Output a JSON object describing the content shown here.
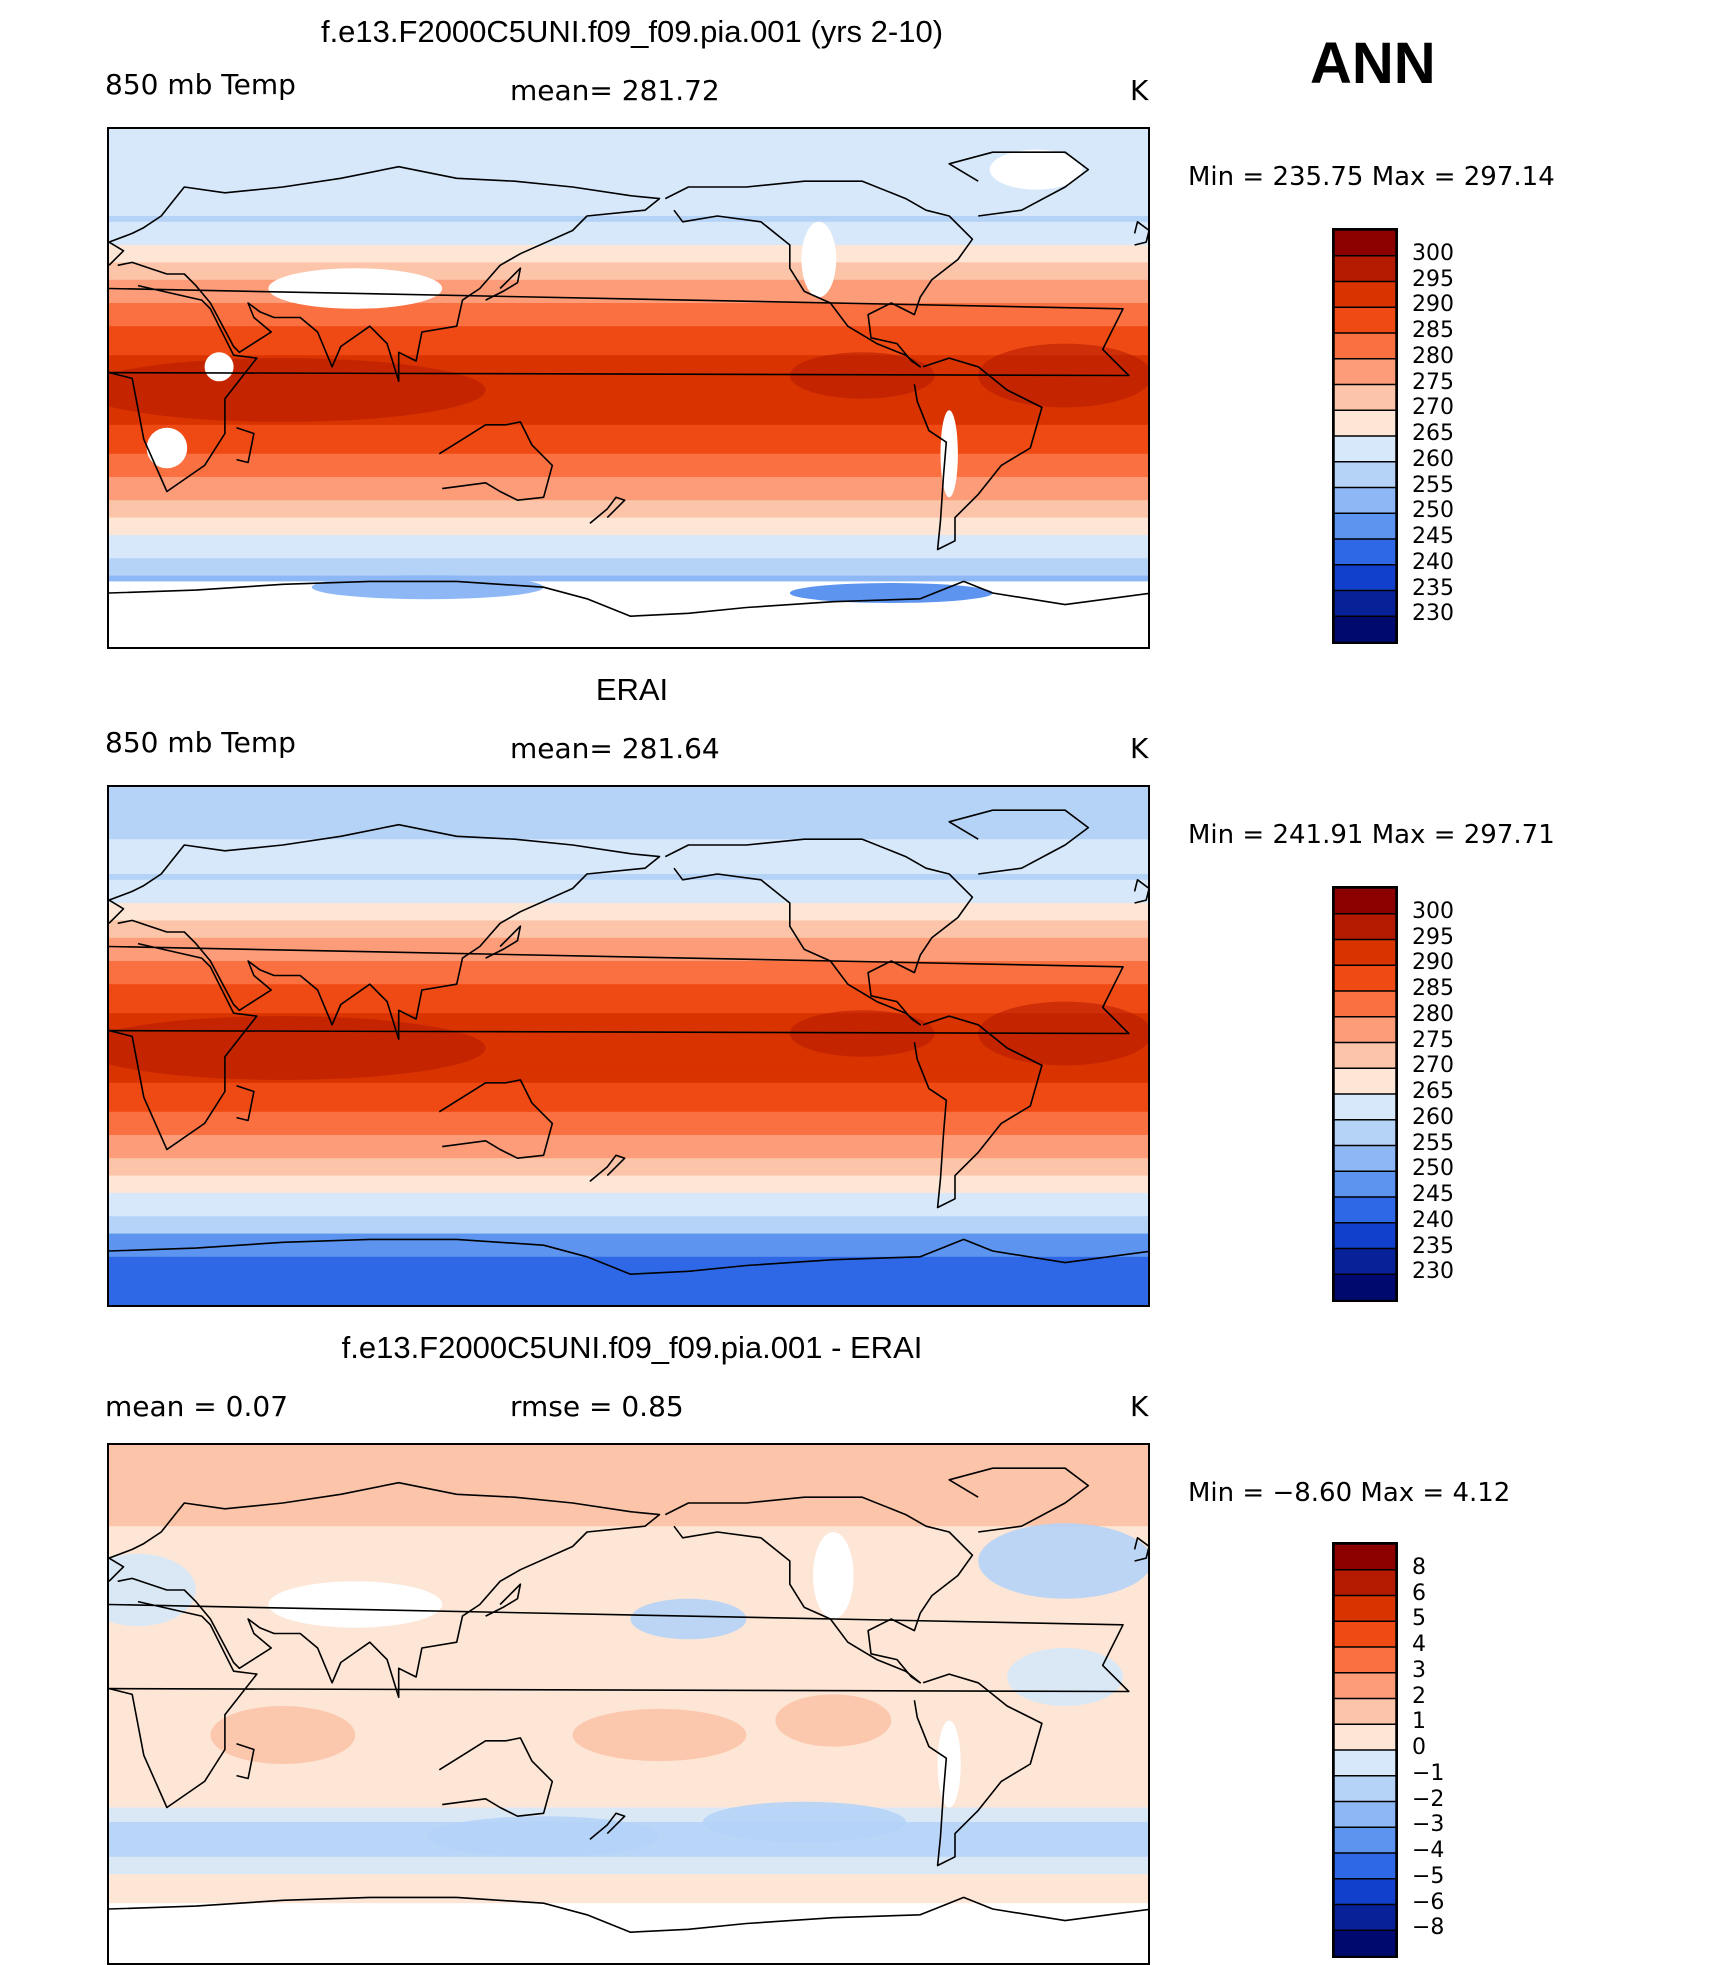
{
  "annual_label": "ANN",
  "panels": [
    {
      "title": "f.e13.F2000C5UNI.f09_f09.pia.001 (yrs 2-10)",
      "left_label": "850 mb Temp",
      "center_label": "mean= 281.72",
      "units": "K",
      "min_max": "Min  =  235.75  Max  =  297.14",
      "colorbar": {
        "levels": [
          "300",
          "295",
          "290",
          "285",
          "280",
          "275",
          "270",
          "265",
          "260",
          "255",
          "250",
          "245",
          "240",
          "235",
          "230"
        ],
        "colors": [
          "#8c0000",
          "#b31a00",
          "#d93300",
          "#f04a14",
          "#fa7040",
          "#fc9c78",
          "#fcc4a8",
          "#fde6d6",
          "#d6e8fa",
          "#b5d3f7",
          "#8db8f5",
          "#5c94f0",
          "#2f68e6",
          "#1140cc",
          "#072299",
          "#000a6e"
        ]
      },
      "map_style": "model"
    },
    {
      "title": "ERAI",
      "left_label": "850 mb Temp",
      "center_label": "mean= 281.64",
      "units": "K",
      "min_max": "Min  =  241.91  Max  =  297.71",
      "colorbar": {
        "levels": [
          "300",
          "295",
          "290",
          "285",
          "280",
          "275",
          "270",
          "265",
          "260",
          "255",
          "250",
          "245",
          "240",
          "235",
          "230"
        ],
        "colors": [
          "#8c0000",
          "#b31a00",
          "#d93300",
          "#f04a14",
          "#fa7040",
          "#fc9c78",
          "#fcc4a8",
          "#fde6d6",
          "#d6e8fa",
          "#b5d3f7",
          "#8db8f5",
          "#5c94f0",
          "#2f68e6",
          "#1140cc",
          "#072299",
          "#000a6e"
        ]
      },
      "map_style": "obs"
    },
    {
      "title": "f.e13.F2000C5UNI.f09_f09.pia.001 - ERAI",
      "left_label": "mean  =      0.07",
      "center_label": "rmse  =      0.85",
      "units": "K",
      "min_max": "Min  =    −8.60  Max  =       4.12",
      "colorbar": {
        "levels": [
          "8",
          "6",
          "5",
          "4",
          "3",
          "2",
          "1",
          "0",
          "−1",
          "−2",
          "−3",
          "−4",
          "−5",
          "−6",
          "−8"
        ],
        "colors": [
          "#8c0000",
          "#b31a00",
          "#d93300",
          "#f04a14",
          "#fa7040",
          "#fc9c78",
          "#fcc4a8",
          "#fde6d6",
          "#d6e8fa",
          "#b5d3f7",
          "#8db8f5",
          "#5c94f0",
          "#2f68e6",
          "#1140cc",
          "#072299",
          "#000a6e"
        ]
      },
      "map_style": "diff"
    }
  ]
}
